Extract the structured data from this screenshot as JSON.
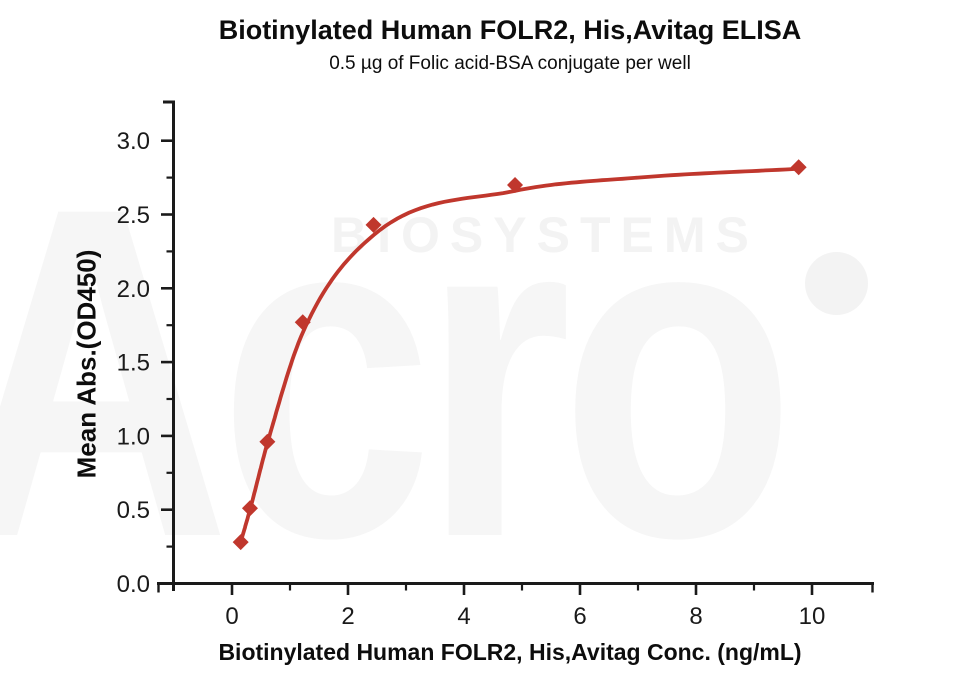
{
  "watermark": {
    "brand": "Acro",
    "sub": "BIOSYSTEMS"
  },
  "chart_data": {
    "type": "scatter",
    "title": "Biotinylated Human FOLR2, His,Avitag ELISA",
    "subtitle": "0.5 µg of Folic acid-BSA conjugate per well",
    "xlabel": "Biotinylated Human FOLR2, His,Avitag Conc. (ng/mL)",
    "ylabel": "Mean Abs.(OD450)",
    "xlim": [
      0,
      10
    ],
    "ylim": [
      0,
      3
    ],
    "x_ticks": [
      0,
      2,
      4,
      6,
      8,
      10
    ],
    "x_tick_labels": [
      "0",
      "2",
      "4",
      "6",
      "8",
      "10"
    ],
    "x_minor_ticks": [
      1,
      3,
      5,
      7,
      9
    ],
    "y_ticks": [
      0,
      0.5,
      1,
      1.5,
      2,
      2.5,
      3
    ],
    "y_tick_labels": [
      "0.0",
      "0.5",
      "1.0",
      "1.5",
      "2.0",
      "2.5",
      "3.0"
    ],
    "y_minor_ticks": [
      0.25,
      0.75,
      1.25,
      1.75,
      2.25,
      2.75
    ],
    "grid": false,
    "legend": "none",
    "axis_color": "#1a1a1a",
    "series": [
      {
        "name": "Biotinylated Human FOLR2, His,Avitag",
        "marker": "diamond",
        "color": "#c0372d",
        "x": [
          0.15,
          0.31,
          0.61,
          1.22,
          2.44,
          4.88,
          9.77
        ],
        "y": [
          0.28,
          0.51,
          0.96,
          1.77,
          2.43,
          2.7,
          2.82
        ]
      }
    ],
    "fit_curve": {
      "color": "#c0372d",
      "anchors_x": [
        0.15,
        0.31,
        0.61,
        1.22,
        2.44,
        4.88,
        7.0,
        9.77
      ],
      "anchors_y": [
        0.28,
        0.5,
        0.95,
        1.7,
        2.36,
        2.66,
        2.75,
        2.81
      ]
    }
  }
}
